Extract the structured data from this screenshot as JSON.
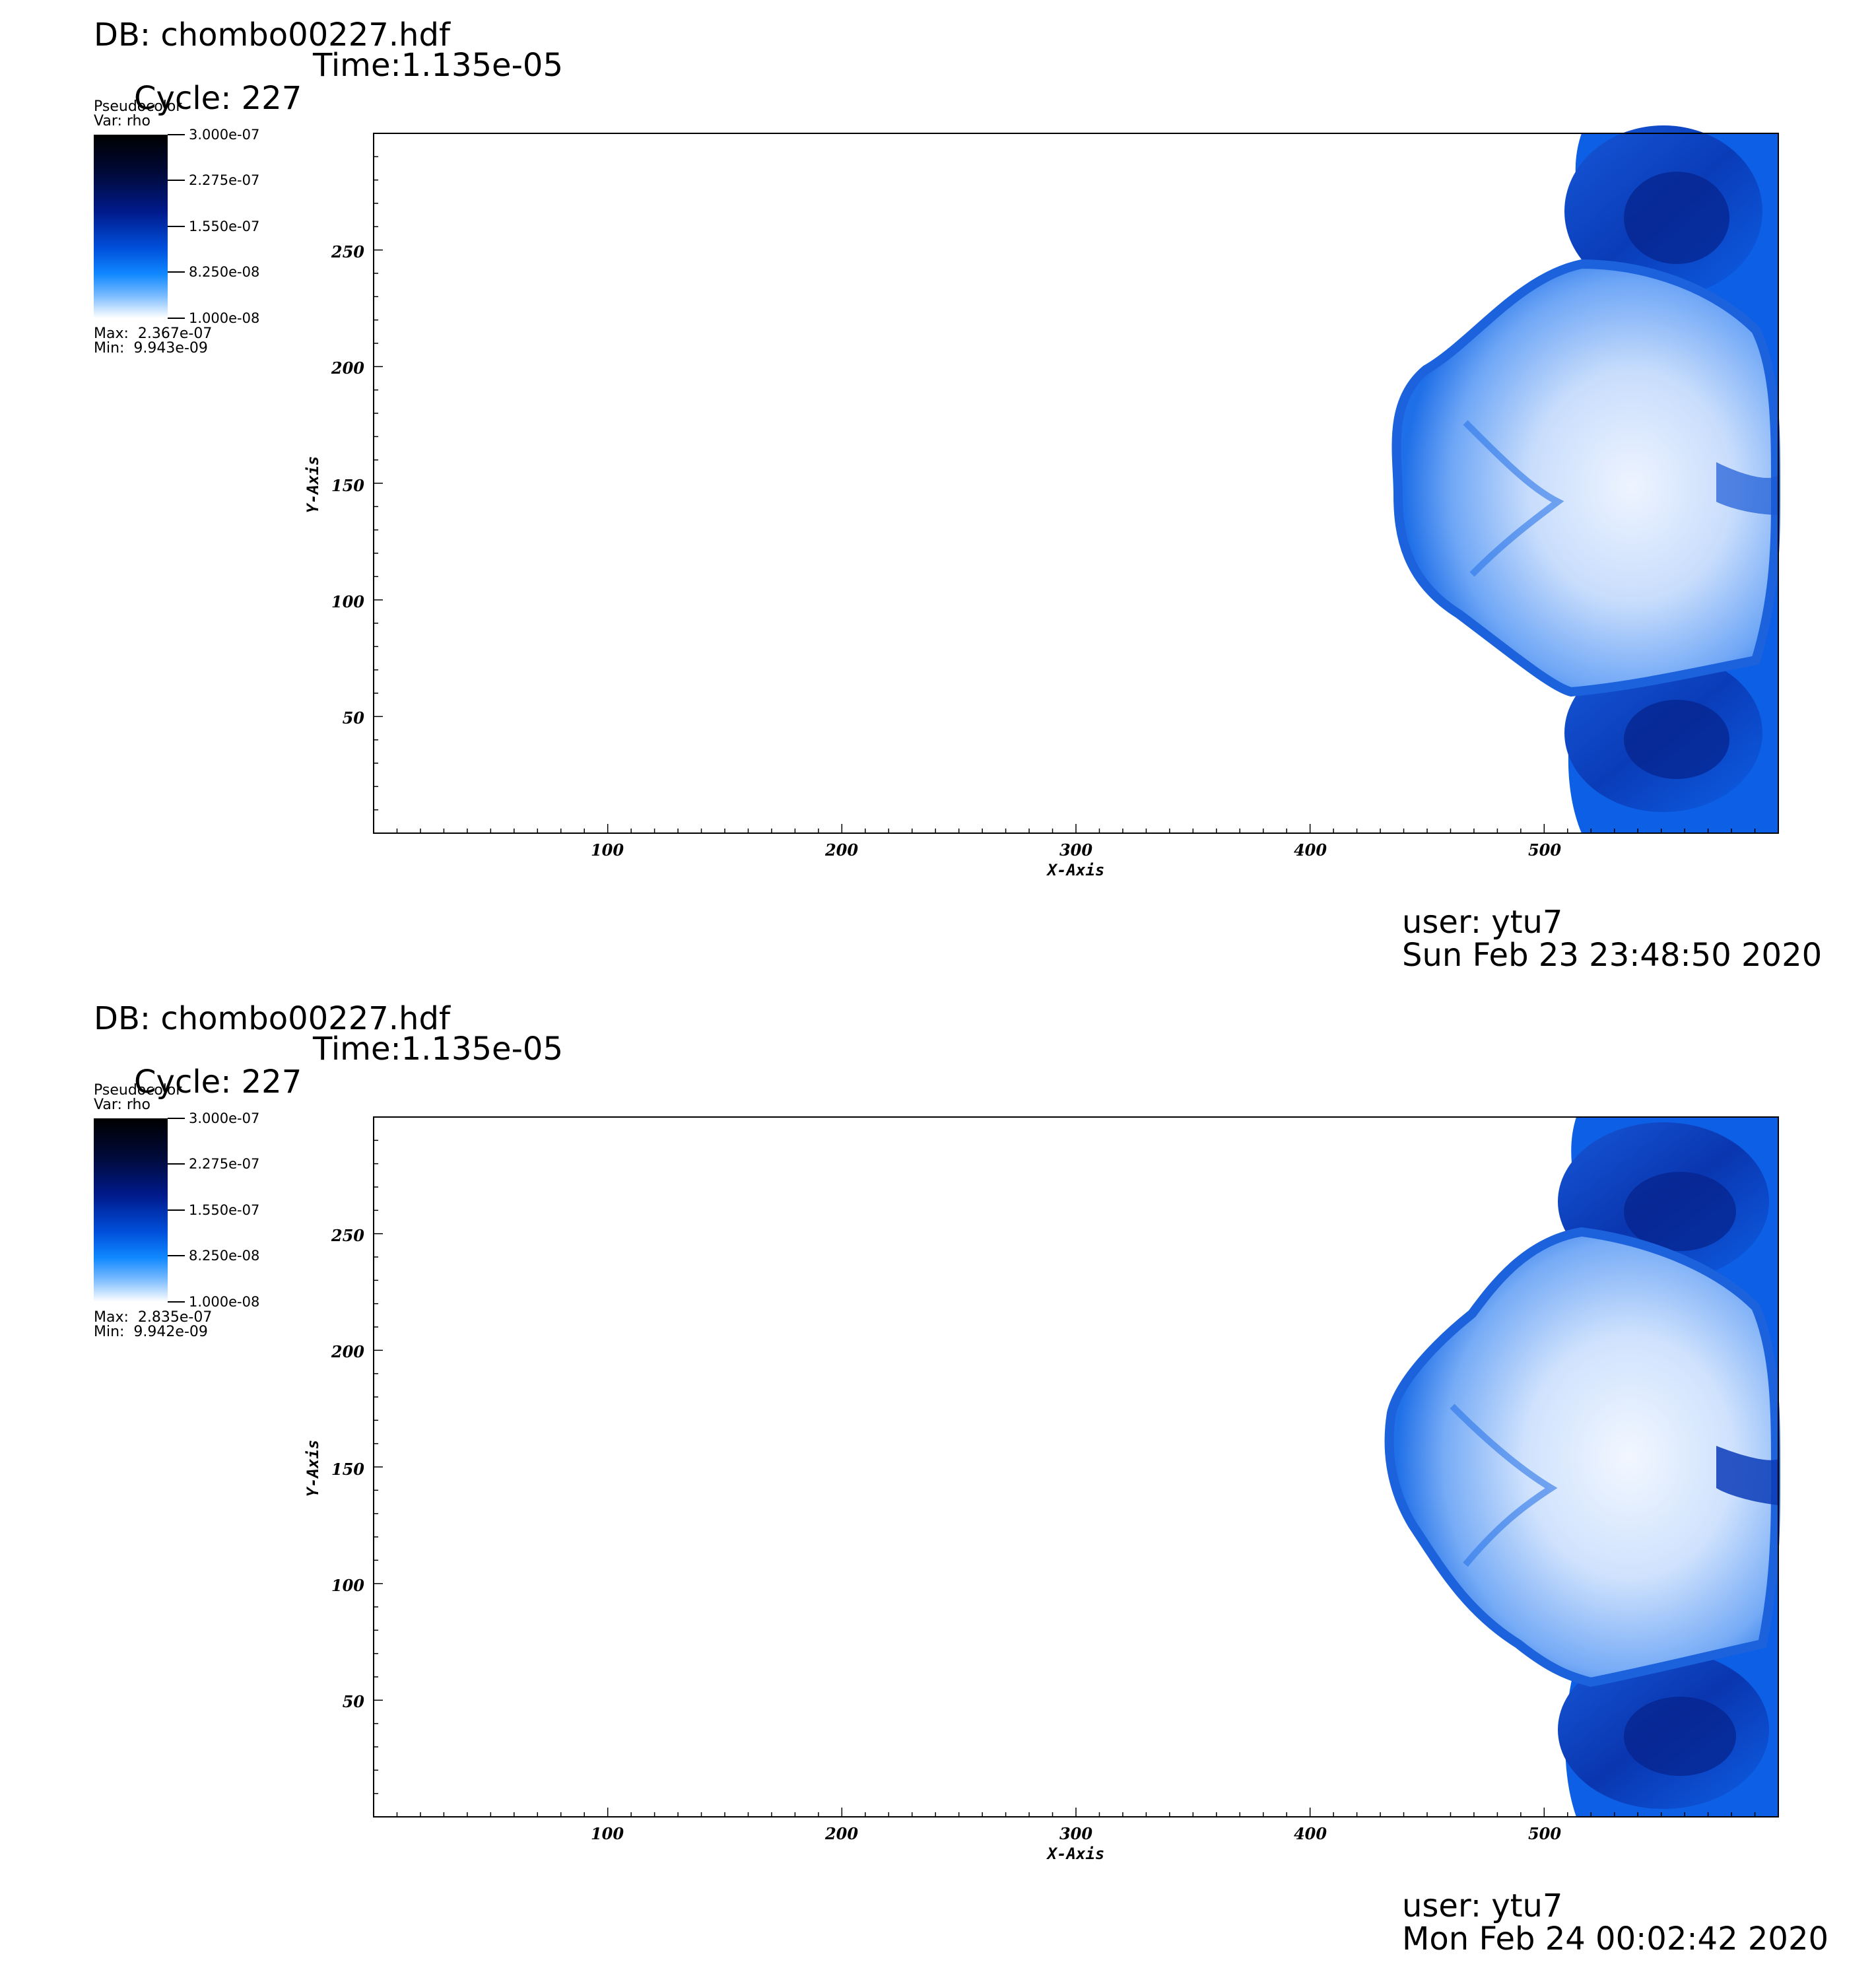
{
  "chart_data": [
    {
      "type": "heatmap",
      "title": "DB: chombo00227.hdf",
      "cycle_label": "Cycle: 227",
      "time_label": "Time:1.135e-05",
      "legend": {
        "plot_type": "Pseudocolor",
        "var_label": "Var: rho",
        "ticks": [
          "3.000e-07",
          "2.275e-07",
          "1.550e-07",
          "8.250e-08",
          "1.000e-08"
        ],
        "max_label": "Max:  2.367e-07",
        "min_label": "Min:  9.943e-09",
        "colormap": [
          "#ffffff",
          "#1088ff",
          "#0050dc",
          "#001a8c",
          "#000000"
        ]
      },
      "xlabel": "X-Axis",
      "ylabel": "Y-Axis",
      "xlim": [
        0,
        600
      ],
      "ylim": [
        0,
        300
      ],
      "x_ticks": [
        "100",
        "200",
        "300",
        "400",
        "500"
      ],
      "y_ticks": [
        "50",
        "100",
        "150",
        "200",
        "250"
      ],
      "user_label": "user: ytu7",
      "date_label": "Sun Feb 23 23:48:50 2020"
    },
    {
      "type": "heatmap",
      "title": "DB: chombo00227.hdf",
      "cycle_label": "Cycle: 227",
      "time_label": "Time:1.135e-05",
      "legend": {
        "plot_type": "Pseudocolor",
        "var_label": "Var: rho",
        "ticks": [
          "3.000e-07",
          "2.275e-07",
          "1.550e-07",
          "8.250e-08",
          "1.000e-08"
        ],
        "max_label": "Max:  2.835e-07",
        "min_label": "Min:  9.942e-09",
        "colormap": [
          "#ffffff",
          "#1088ff",
          "#0050dc",
          "#001a8c",
          "#000000"
        ]
      },
      "xlabel": "X-Axis",
      "ylabel": "Y-Axis",
      "xlim": [
        0,
        600
      ],
      "ylim": [
        0,
        300
      ],
      "x_ticks": [
        "100",
        "200",
        "300",
        "400",
        "500"
      ],
      "y_ticks": [
        "50",
        "100",
        "150",
        "200",
        "250"
      ],
      "user_label": "user: ytu7",
      "date_label": "Mon Feb 24 00:02:42 2020"
    }
  ]
}
